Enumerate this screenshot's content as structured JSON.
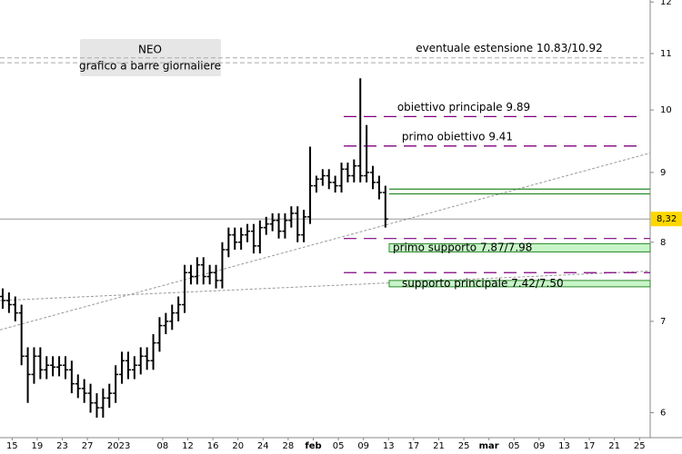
{
  "chart_data": {
    "type": "ohlc",
    "title": "NEO",
    "subtitle": "grafico a barre giornaliere",
    "yscale": "log",
    "ylim": [
      5.77,
      12.04
    ],
    "yticks": [
      6,
      7,
      8,
      9,
      10,
      11,
      12
    ],
    "xlim": [
      -0.43,
      103.2
    ],
    "xticks": [
      {
        "value": 1.5,
        "label": "15"
      },
      {
        "value": 5.5,
        "label": "19"
      },
      {
        "value": 9.5,
        "label": "23"
      },
      {
        "value": 13.5,
        "label": "27"
      },
      {
        "value": 18.5,
        "label": "2023"
      },
      {
        "value": 25.5,
        "label": "08"
      },
      {
        "value": 29.5,
        "label": "12"
      },
      {
        "value": 33.5,
        "label": "16"
      },
      {
        "value": 37.5,
        "label": "20"
      },
      {
        "value": 41.5,
        "label": "24"
      },
      {
        "value": 45.5,
        "label": "28"
      },
      {
        "value": 49.5,
        "label": "feb"
      },
      {
        "value": 53.5,
        "label": "05"
      },
      {
        "value": 57.5,
        "label": "09"
      },
      {
        "value": 61.5,
        "label": "13"
      },
      {
        "value": 65.5,
        "label": "17"
      },
      {
        "value": 69.5,
        "label": "21"
      },
      {
        "value": 73.5,
        "label": "25"
      },
      {
        "value": 77.5,
        "label": "mar"
      },
      {
        "value": 81.5,
        "label": "05"
      },
      {
        "value": 85.5,
        "label": "09"
      },
      {
        "value": 89.5,
        "label": "13"
      },
      {
        "value": 93.5,
        "label": "17"
      },
      {
        "value": 97.5,
        "label": "21"
      },
      {
        "value": 101.5,
        "label": "25"
      }
    ],
    "color": "#000000",
    "open": [
      7.3,
      7.25,
      7.2,
      7.1,
      6.6,
      6.4,
      6.6,
      6.45,
      6.5,
      6.48,
      6.5,
      6.45,
      6.3,
      6.25,
      6.2,
      6.1,
      6.05,
      6.15,
      6.2,
      6.4,
      6.55,
      6.45,
      6.5,
      6.6,
      6.55,
      6.75,
      6.95,
      7.0,
      7.1,
      7.2,
      7.6,
      7.55,
      7.7,
      7.55,
      7.6,
      7.5,
      7.9,
      8.1,
      8.0,
      8.1,
      8.15,
      7.95,
      8.2,
      8.25,
      8.3,
      8.15,
      8.3,
      8.4,
      8.1,
      8.35,
      8.8,
      8.9,
      8.95,
      8.85,
      8.8,
      9.05,
      8.95,
      9.1,
      8.95,
      9.0,
      8.85,
      8.7
    ],
    "high": [
      7.4,
      7.35,
      7.3,
      7.2,
      6.7,
      6.7,
      6.7,
      6.6,
      6.6,
      6.6,
      6.6,
      6.55,
      6.4,
      6.35,
      6.3,
      6.2,
      6.25,
      6.3,
      6.5,
      6.65,
      6.65,
      6.6,
      6.7,
      6.7,
      6.85,
      7.05,
      7.1,
      7.2,
      7.3,
      7.7,
      7.7,
      7.8,
      7.8,
      7.7,
      7.7,
      8.0,
      8.2,
      8.2,
      8.2,
      8.25,
      8.25,
      8.3,
      8.35,
      8.4,
      8.4,
      8.4,
      8.5,
      8.5,
      8.45,
      9.4,
      8.95,
      9.05,
      9.05,
      8.95,
      9.15,
      9.15,
      9.2,
      10.55,
      9.75,
      9.1,
      8.95,
      8.8
    ],
    "low": [
      7.15,
      7.1,
      7.0,
      6.5,
      6.1,
      6.3,
      6.35,
      6.35,
      6.38,
      6.38,
      6.35,
      6.2,
      6.15,
      6.1,
      6.0,
      5.95,
      5.95,
      6.05,
      6.1,
      6.3,
      6.35,
      6.35,
      6.4,
      6.45,
      6.45,
      6.65,
      6.85,
      6.9,
      7.0,
      7.1,
      7.45,
      7.45,
      7.45,
      7.45,
      7.4,
      7.4,
      7.8,
      7.9,
      7.9,
      8.0,
      7.85,
      7.85,
      8.1,
      8.15,
      8.05,
      8.05,
      8.2,
      8.0,
      8.0,
      8.25,
      8.7,
      8.8,
      8.75,
      8.7,
      8.7,
      8.85,
      8.85,
      8.85,
      8.85,
      8.75,
      8.6,
      8.2
    ],
    "close": [
      7.25,
      7.2,
      7.1,
      6.6,
      6.4,
      6.6,
      6.45,
      6.5,
      6.48,
      6.5,
      6.45,
      6.3,
      6.25,
      6.2,
      6.1,
      6.05,
      6.15,
      6.2,
      6.4,
      6.55,
      6.45,
      6.5,
      6.6,
      6.55,
      6.75,
      6.95,
      7.0,
      7.1,
      7.2,
      7.6,
      7.55,
      7.7,
      7.55,
      7.6,
      7.5,
      7.9,
      8.1,
      8.0,
      8.1,
      8.15,
      7.95,
      8.2,
      8.25,
      8.3,
      8.15,
      8.3,
      8.4,
      8.1,
      8.35,
      8.8,
      8.9,
      8.95,
      8.85,
      8.8,
      9.05,
      8.95,
      9.1,
      8.95,
      9.0,
      8.85,
      8.7,
      8.32
    ],
    "last_price": {
      "value": 8.32,
      "label": "8,32"
    },
    "levels": [
      {
        "label": "eventuale estensione 10.83/10.92",
        "values": [
          10.83,
          10.92
        ],
        "color": "#aaaaaa"
      },
      {
        "label": "obiettivo principale 9.89",
        "values": [
          9.89
        ],
        "color": "#800080"
      },
      {
        "label": "primo obiettivo 9.41",
        "values": [
          9.41
        ],
        "color": "#800080"
      }
    ],
    "bands": [
      {
        "label": "primo supporto 7.87/7.98",
        "values": [
          7.87,
          7.98
        ],
        "color": "#c8f5c8"
      },
      {
        "label": "supporto principale 7.42/7.50",
        "values": [
          7.42,
          7.5
        ],
        "color": "#c8f5c8"
      }
    ],
    "extra_levels": [
      {
        "values": [
          8.05,
          7.6
        ],
        "color": "#800080"
      },
      {
        "values": [
          8.75,
          8.68
        ],
        "color": "#2a8a2a"
      }
    ],
    "trendlines": [
      [
        -0.43,
        6.9,
        103.2,
        9.3
      ],
      [
        -0.43,
        7.25,
        103.2,
        7.62
      ]
    ]
  }
}
